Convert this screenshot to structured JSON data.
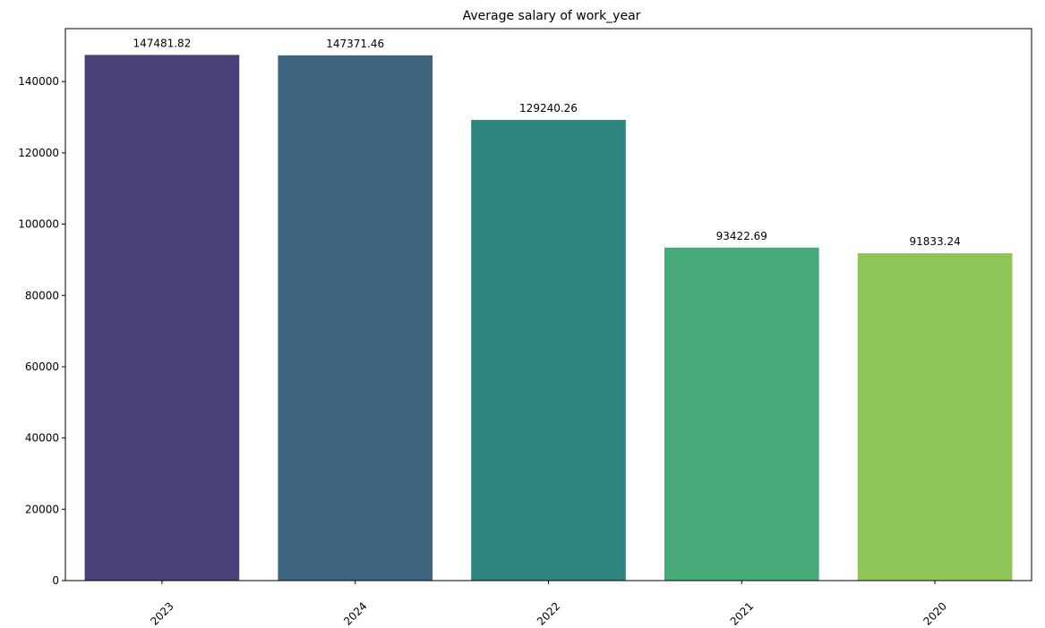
{
  "chart_data": {
    "type": "bar",
    "title": "Average salary of work_year",
    "xlabel": "",
    "ylabel": "",
    "categories": [
      "2023",
      "2024",
      "2022",
      "2021",
      "2020"
    ],
    "values": [
      147481.82,
      147371.46,
      129240.26,
      93422.69,
      91833.24
    ],
    "value_labels": [
      "147481.82",
      "147371.46",
      "129240.26",
      "93422.69",
      "91833.24"
    ],
    "colors": [
      "#4a4078",
      "#3e6680",
      "#2e857e",
      "#47a878",
      "#8fc457"
    ],
    "ylim": [
      0,
      154855.91
    ],
    "yticks": [
      0,
      20000,
      40000,
      60000,
      80000,
      100000,
      120000,
      140000
    ],
    "ytick_labels": [
      "0",
      "20000",
      "40000",
      "60000",
      "80000",
      "100000",
      "120000",
      "140000"
    ],
    "xtick_rotation": -45,
    "grid": false,
    "legend": "none"
  }
}
